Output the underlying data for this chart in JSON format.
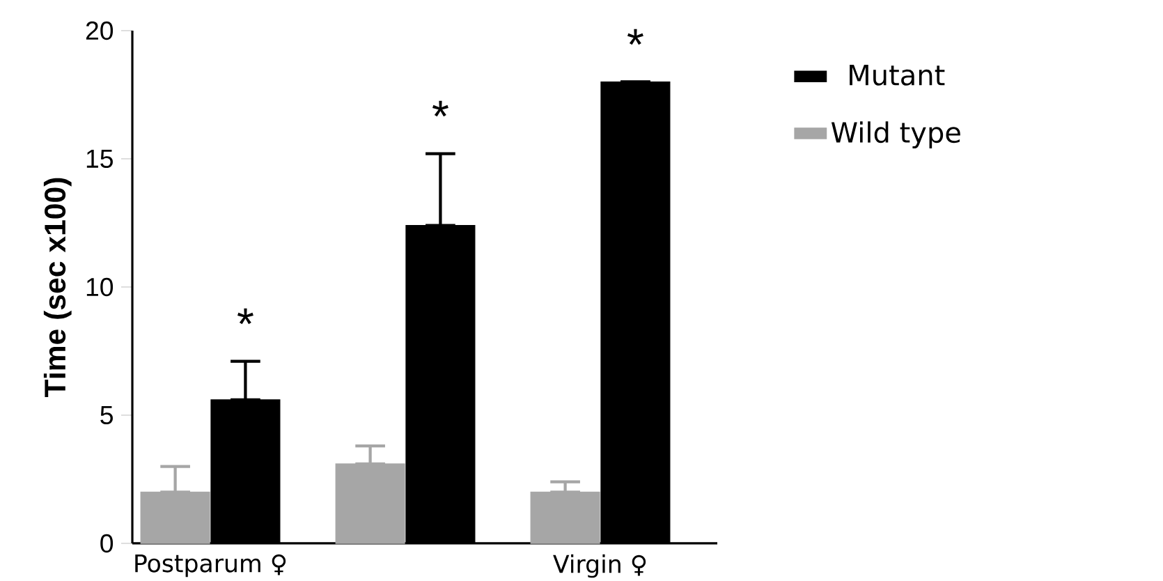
{
  "chart_data": {
    "type": "bar",
    "ylabel": "Time (sec x100)",
    "categories": [
      "Postparum ♀",
      null,
      "Virgin ♀"
    ],
    "series": [
      {
        "name": "Wild type",
        "color": "#a6a6a6",
        "values": [
          2.0,
          3.1,
          2.0
        ],
        "errors": [
          [
            2.0,
            3.0
          ],
          [
            3.1,
            3.8
          ],
          [
            2.0,
            2.4
          ]
        ]
      },
      {
        "name": "Mutant",
        "color": "#000000",
        "values": [
          5.6,
          12.4,
          18.0
        ],
        "errors": [
          [
            5.6,
            7.1
          ],
          [
            12.4,
            15.2
          ],
          null
        ]
      }
    ],
    "ylim": [
      0,
      20
    ],
    "yticks": [
      0,
      5,
      10,
      15,
      20
    ],
    "legend": "right",
    "annotations": [
      "*",
      "*",
      "*"
    ]
  }
}
